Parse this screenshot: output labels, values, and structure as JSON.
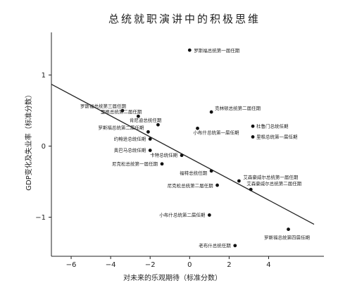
{
  "chart_data": {
    "type": "scatter",
    "title": "总统就职演讲中的积极思维",
    "xlabel": "对未来的乐观期待（标准分数）",
    "ylabel": "GDP变化及失业率（标准分数）",
    "xlim": [
      -7,
      6.8
    ],
    "ylim": [
      -1.55,
      1.6
    ],
    "xticks": [
      -6,
      -4,
      -2,
      0,
      2,
      4
    ],
    "yticks": [
      -1,
      0,
      1
    ],
    "grid": false,
    "points": [
      {
        "label": "罗斯福总统第一届任期",
        "x": 0.0,
        "y": 1.35
      },
      {
        "label": "罗斯福总统第三届任期",
        "x": -3.4,
        "y": 0.5
      },
      {
        "label": "里根总统第二届任期",
        "x": -2.6,
        "y": 0.42
      },
      {
        "label": "克林顿总统第二届任期",
        "x": 1.1,
        "y": 0.48
      },
      {
        "label": "肯尼迪总统任期",
        "x": -1.6,
        "y": 0.3
      },
      {
        "label": "小布什总统第一届任期",
        "x": 0.4,
        "y": 0.25
      },
      {
        "label": "杜鲁门总统任期",
        "x": 3.2,
        "y": 0.28
      },
      {
        "label": "里根总统第一届任期",
        "x": 3.2,
        "y": 0.13
      },
      {
        "label": "罗斯福总统第二届任期",
        "x": -2.1,
        "y": 0.2
      },
      {
        "label": "约翰逊总统任期",
        "x": -2.0,
        "y": 0.1
      },
      {
        "label": "奥巴马总统任期",
        "x": -2.0,
        "y": -0.06
      },
      {
        "label": "卡特总统任期",
        "x": -0.4,
        "y": -0.13
      },
      {
        "label": "尼克松总统第一届任期",
        "x": -1.4,
        "y": -0.25
      },
      {
        "label": "福特总统任期",
        "x": 1.1,
        "y": -0.35
      },
      {
        "label": "艾森豪威尔总统第一届任期",
        "x": 2.5,
        "y": -0.49
      },
      {
        "label": "尼克松总统第二届任期",
        "x": 1.4,
        "y": -0.55
      },
      {
        "label": "艾森豪威尔总统第二届任期",
        "x": 3.1,
        "y": -0.61
      },
      {
        "label": "小布什总统第二届任期",
        "x": 1.0,
        "y": -0.97
      },
      {
        "label": "罗斯福总统第四届任期",
        "x": 5.0,
        "y": -1.17
      },
      {
        "label": "老布什总统任期",
        "x": 2.3,
        "y": -1.4
      }
    ],
    "trendline": {
      "x": [
        -7,
        6.3
      ],
      "y": [
        0.87,
        -1.1
      ]
    }
  }
}
